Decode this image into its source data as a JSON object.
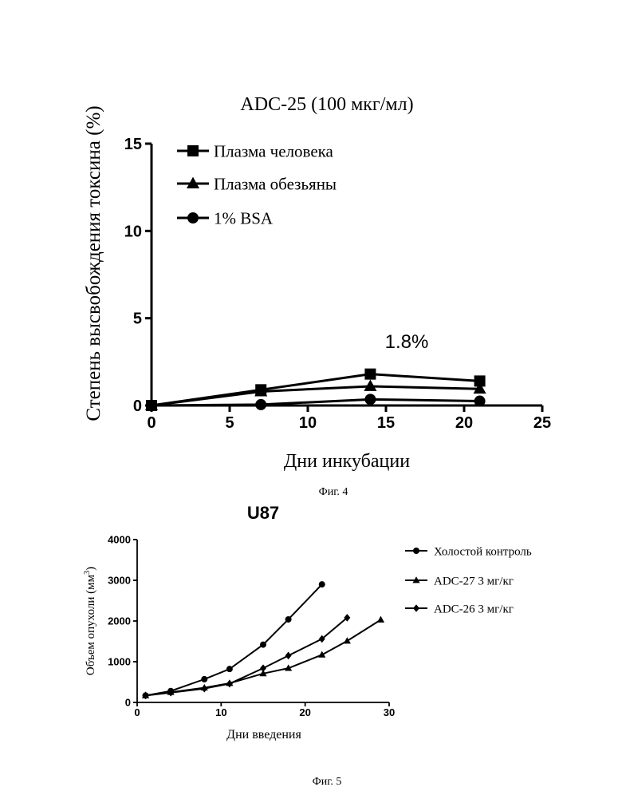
{
  "chart_data": [
    {
      "type": "line",
      "title": "ADC-25 (100 мкг/мл)",
      "xlabel": "Дни инкубации",
      "ylabel": "Степень высвобождения токсина (%)",
      "xlim": [
        0,
        25
      ],
      "ylim": [
        0,
        15
      ],
      "xticks": [
        "0",
        "5",
        "10",
        "15",
        "20",
        "25"
      ],
      "yticks": [
        "0",
        "5",
        "10",
        "15"
      ],
      "legend_position": "top-left",
      "grid": false,
      "annotation": "1.8%",
      "caption": "Фиг. 4",
      "series": [
        {
          "name": "Плазма человека",
          "marker": "square",
          "x": [
            0,
            7,
            14,
            21
          ],
          "y": [
            0.0,
            0.9,
            1.8,
            1.4
          ]
        },
        {
          "name": "Плазма обезьяны",
          "marker": "triangle",
          "x": [
            0,
            7,
            14,
            21
          ],
          "y": [
            0.0,
            0.8,
            1.1,
            0.95
          ]
        },
        {
          "name": "1% BSA",
          "marker": "circle",
          "x": [
            0,
            7,
            14,
            21
          ],
          "y": [
            0.0,
            0.05,
            0.35,
            0.25
          ]
        }
      ]
    },
    {
      "type": "line",
      "title": "U87",
      "xlabel": "Дни введения",
      "ylabel": "Объем опухоли (мм3)",
      "xlim": [
        0,
        30
      ],
      "ylim": [
        0,
        4000
      ],
      "xticks": [
        "0",
        "10",
        "20",
        "30"
      ],
      "yticks": [
        "0",
        "1000",
        "2000",
        "3000",
        "4000"
      ],
      "legend_position": "right",
      "grid": false,
      "caption": "Фиг. 5",
      "series": [
        {
          "name": "Холостой контроль",
          "marker": "circle",
          "x": [
            1,
            4,
            8,
            11,
            15,
            18,
            22
          ],
          "y": [
            170,
            280,
            570,
            820,
            1420,
            2040,
            2900
          ]
        },
        {
          "name": "ADC-27 3 мг/кг",
          "marker": "triangle",
          "x": [
            1,
            4,
            8,
            11,
            15,
            18,
            22,
            25,
            29
          ],
          "y": [
            170,
            250,
            360,
            470,
            710,
            840,
            1170,
            1510,
            2030
          ]
        },
        {
          "name": "ADC-26 3 мг/кг",
          "marker": "diamond",
          "x": [
            1,
            4,
            8,
            11,
            15,
            18,
            22,
            25
          ],
          "y": [
            170,
            240,
            340,
            460,
            840,
            1150,
            1560,
            2080
          ]
        }
      ]
    }
  ]
}
